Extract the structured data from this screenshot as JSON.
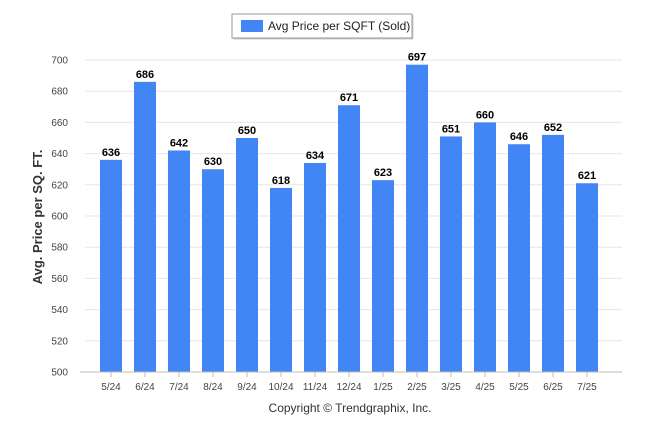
{
  "chart_data": {
    "type": "bar",
    "categories": [
      "5/24",
      "6/24",
      "7/24",
      "8/24",
      "9/24",
      "10/24",
      "11/24",
      "12/24",
      "1/25",
      "2/25",
      "3/25",
      "4/25",
      "5/25",
      "6/25",
      "7/25"
    ],
    "series": [
      {
        "name": "Avg Price per SQFT (Sold)",
        "values": [
          636,
          686,
          642,
          630,
          650,
          618,
          634,
          671,
          623,
          697,
          651,
          660,
          646,
          652,
          621
        ],
        "color": "#4285f4"
      }
    ],
    "ylabel": "Avg. Price per SQ. FT.",
    "xlabel": "",
    "ylim": [
      500,
      700
    ],
    "yticks": [
      500,
      520,
      540,
      560,
      580,
      600,
      620,
      640,
      660,
      680,
      700
    ],
    "grid": true,
    "legend_position": "top-center",
    "data_labels": true
  },
  "footer": {
    "copyright": "Copyright © Trendgraphix, Inc."
  }
}
